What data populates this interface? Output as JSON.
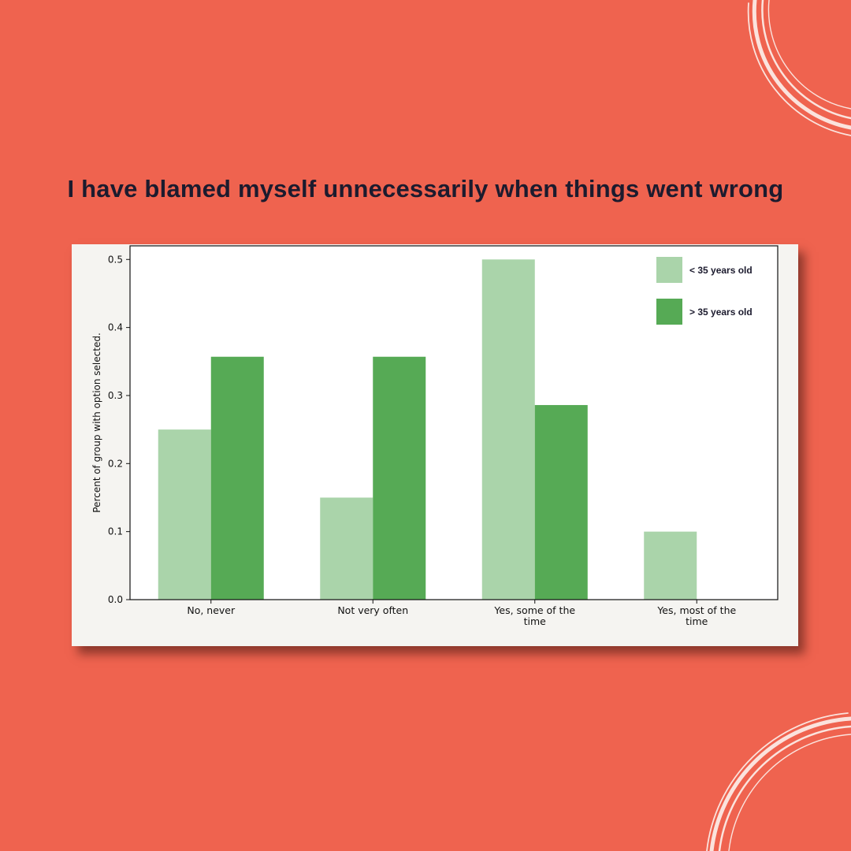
{
  "colors": {
    "background": "#ef634f",
    "card": "#f5f4f1",
    "title": "#1c1b2e",
    "series_light": "#aad4aa",
    "series_dark": "#56aa55",
    "decor_ring": "#fbe3dd"
  },
  "chart_data": {
    "type": "bar",
    "title": "I have blamed myself unnecessarily when things went wrong",
    "ylabel": "Percent of group with option selected.",
    "xlabel": "",
    "categories": [
      [
        "No, never"
      ],
      [
        "Not very often"
      ],
      [
        "Yes, some of the",
        "time"
      ],
      [
        "Yes, most of the",
        "time"
      ]
    ],
    "series": [
      {
        "name": "< 35 years old",
        "values": [
          0.25,
          0.15,
          0.5,
          0.1
        ]
      },
      {
        "name": "> 35 years old",
        "values": [
          0.357,
          0.357,
          0.286,
          0.0
        ]
      }
    ],
    "ylim": [
      0,
      0.52
    ],
    "yticks": [
      "0.0",
      "0.1",
      "0.2",
      "0.3",
      "0.4",
      "0.5"
    ],
    "legend": "top-right",
    "grid": false
  }
}
